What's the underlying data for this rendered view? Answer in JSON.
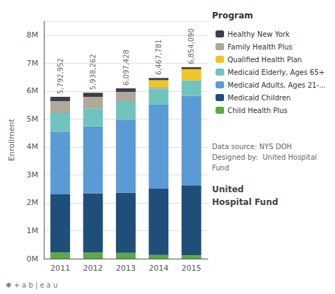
{
  "chart_data": {
    "type": "bar",
    "stacked": true,
    "categories": [
      2011,
      2012,
      2013,
      2014,
      2015
    ],
    "series": [
      {
        "name": "Child Health Plus",
        "color": "#5aaa46",
        "values": [
          220000,
          220000,
          210000,
          135000,
          125000
        ]
      },
      {
        "name": "Medicaid Children",
        "color": "#1f4e79",
        "values": [
          2080000,
          2120000,
          2150000,
          2370000,
          2500000
        ]
      },
      {
        "name": "Medicaid Adults, Ages 21-...",
        "color": "#5b9bd5",
        "values": [
          2250000,
          2400000,
          2620000,
          3020000,
          3200000
        ]
      },
      {
        "name": "Medicaid Elderly, Ages 65+",
        "color": "#70c4be",
        "values": [
          660000,
          640000,
          660000,
          560000,
          560000
        ]
      },
      {
        "name": "Family Health Plus",
        "color": "#b0a898",
        "values": [
          430000,
          410000,
          330000,
          55000,
          0
        ]
      },
      {
        "name": "Qualified Health Plan",
        "color": "#f0c526",
        "values": [
          0,
          0,
          0,
          250000,
          400000
        ]
      },
      {
        "name": "Healthy New York",
        "color": "#3d3d4a",
        "values": [
          153000,
          148000,
          127000,
          77000,
          69000
        ]
      }
    ],
    "ylabel": "Enrollment",
    "ylim": [
      0,
      8500000
    ],
    "yticks": [
      {
        "value": 0,
        "label": "0M"
      },
      {
        "value": 1000000,
        "label": "1M"
      },
      {
        "value": 2000000,
        "label": "2M"
      },
      {
        "value": 3000000,
        "label": "3M"
      },
      {
        "value": 4000000,
        "label": "4M"
      },
      {
        "value": 5000000,
        "label": "5M"
      },
      {
        "value": 6000000,
        "label": "6M"
      },
      {
        "value": 7000000,
        "label": "7M"
      },
      {
        "value": 8000000,
        "label": "8M"
      }
    ],
    "grid": true,
    "legend": "right",
    "legend_title": "Program",
    "legend_order": [
      "Healthy New York",
      "Family Health Plus",
      "Qualified Health Plan",
      "Medicaid Elderly, Ages 65+",
      "Medicaid Adults, Ages 21-...",
      "Medicaid Children",
      "Child Health Plus"
    ],
    "totals": [
      5792952,
      5938262,
      6097428,
      6467781,
      6854090
    ],
    "total_labels": [
      "5,792,952",
      "5,938,262",
      "6,097,428",
      "6,467,781",
      "6,854,090"
    ],
    "annotations": [
      "Data source: NYS DOH\nDesigned by:  United Hospital\nFund",
      "United",
      "Hospital Fund",
      "✱ + a b | e a u"
    ]
  }
}
